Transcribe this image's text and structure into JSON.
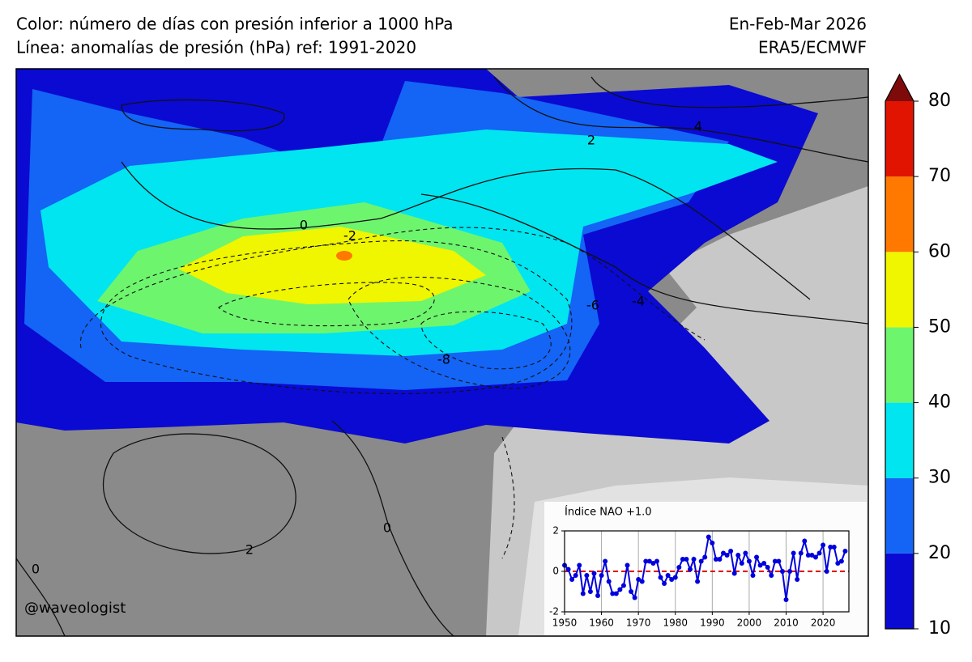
{
  "header": {
    "left_lines": [
      "Color: número de días con presión inferior a 1000 hPa",
      "Línea: anomalías de presión (hPa) ref: 1991-2020"
    ],
    "right_lines": [
      "En-Feb-Mar 2026",
      "ERA5/ECMWF"
    ]
  },
  "credit": "@waveologist",
  "map": {
    "contour_labels": [
      0,
      -2,
      2,
      4,
      -4,
      -6,
      -8,
      0,
      2,
      0
    ]
  },
  "colorbar": {
    "levels": [
      10,
      20,
      30,
      40,
      50,
      60,
      70,
      80
    ],
    "colors": [
      "#0a0ad2",
      "#1464f5",
      "#00e5ef",
      "#6ef56e",
      "#f0f500",
      "#ff7800",
      "#e01400"
    ],
    "extend_color": "#7f0a0a"
  },
  "chart_data": {
    "type": "line",
    "title": "Índice NAO +1.0",
    "x": [
      1950,
      1951,
      1952,
      1953,
      1954,
      1955,
      1956,
      1957,
      1958,
      1959,
      1960,
      1961,
      1962,
      1963,
      1964,
      1965,
      1966,
      1967,
      1968,
      1969,
      1970,
      1971,
      1972,
      1973,
      1974,
      1975,
      1976,
      1977,
      1978,
      1979,
      1980,
      1981,
      1982,
      1983,
      1984,
      1985,
      1986,
      1987,
      1988,
      1989,
      1990,
      1991,
      1992,
      1993,
      1994,
      1995,
      1996,
      1997,
      1998,
      1999,
      2000,
      2001,
      2002,
      2003,
      2004,
      2005,
      2006,
      2007,
      2008,
      2009,
      2010,
      2011,
      2012,
      2013,
      2014,
      2015,
      2016,
      2017,
      2018,
      2019,
      2020,
      2021,
      2022,
      2023,
      2024,
      2025,
      2026
    ],
    "series": [
      {
        "color": "#0000dd",
        "values": [
          0.3,
          0.1,
          -0.4,
          -0.2,
          0.3,
          -1.1,
          -0.2,
          -1.0,
          -0.1,
          -1.2,
          -0.2,
          0.5,
          -0.5,
          -1.1,
          -1.1,
          -0.9,
          -0.7,
          0.3,
          -1.0,
          -1.3,
          -0.4,
          -0.5,
          0.5,
          0.5,
          0.4,
          0.5,
          -0.3,
          -0.6,
          -0.2,
          -0.4,
          -0.3,
          0.2,
          0.6,
          0.6,
          0.1,
          0.6,
          -0.5,
          0.5,
          0.7,
          1.7,
          1.4,
          0.6,
          0.6,
          0.9,
          0.8,
          1.0,
          -0.1,
          0.8,
          0.4,
          0.9,
          0.5,
          -0.2,
          0.7,
          0.3,
          0.4,
          0.2,
          -0.2,
          0.5,
          0.5,
          0.0,
          -1.4,
          0.0,
          0.9,
          -0.4,
          0.9,
          1.5,
          0.8,
          0.8,
          0.7,
          0.9,
          1.3,
          0.0,
          1.2,
          1.2,
          0.4,
          0.5,
          1.0
        ]
      }
    ],
    "xlim": [
      1950,
      2027
    ],
    "xticks": [
      1950,
      1960,
      1970,
      1980,
      1990,
      2000,
      2010,
      2020
    ],
    "ylim": [
      -2,
      2
    ],
    "yticks": [
      -2,
      0,
      2
    ],
    "grid": true,
    "zero_line_color": "#e00000"
  }
}
